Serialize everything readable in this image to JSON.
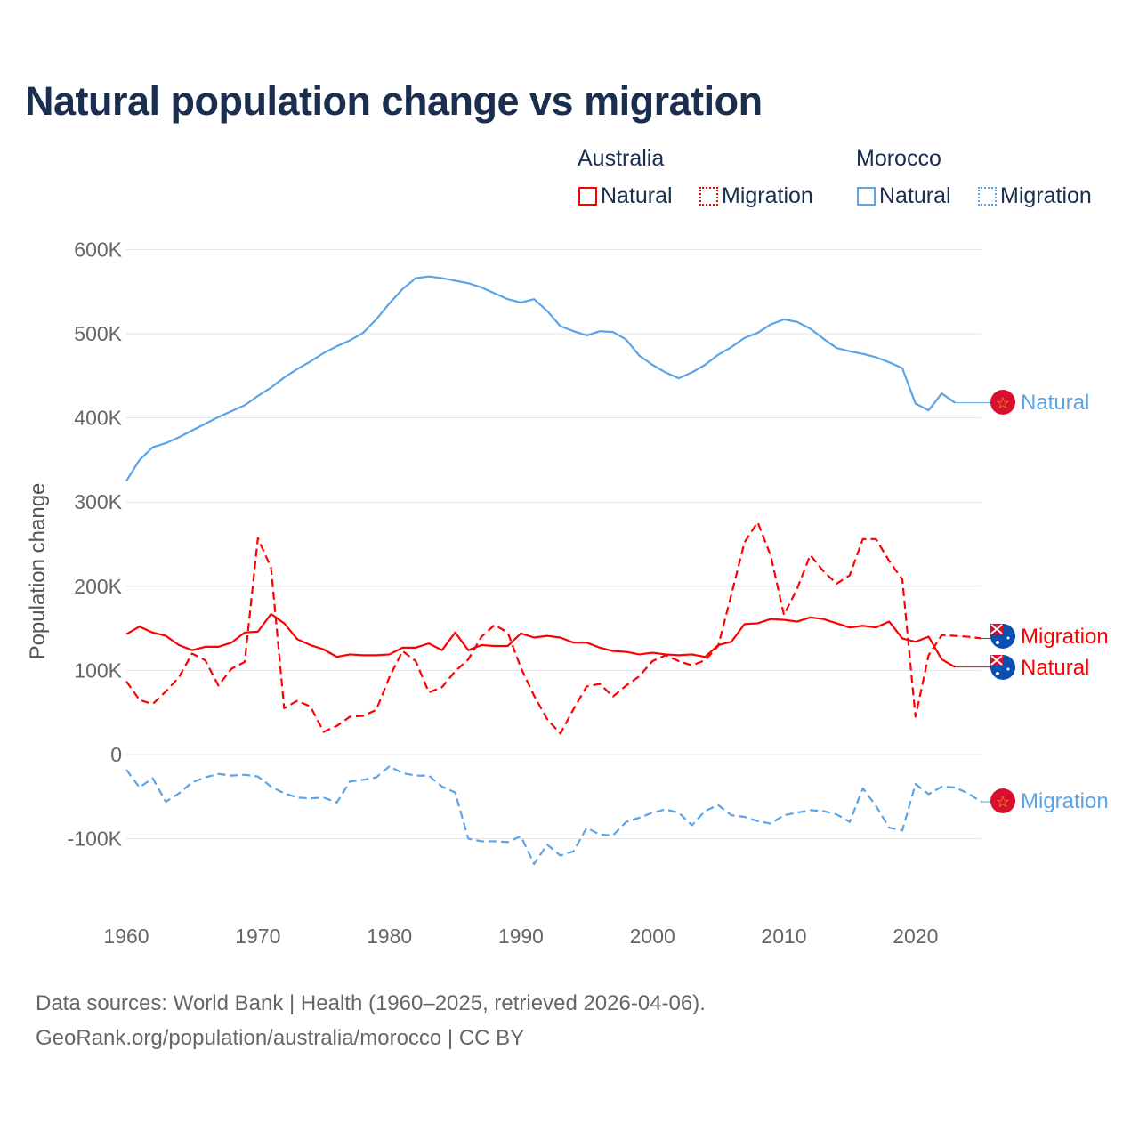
{
  "title": "Natural population change vs migration",
  "legend": {
    "groups": [
      {
        "name": "Australia",
        "color": "#ff0000",
        "items": [
          "Natural",
          "Migration"
        ]
      },
      {
        "name": "Morocco",
        "color": "#5aa4e8",
        "items": [
          "Natural",
          "Migration"
        ]
      }
    ]
  },
  "footer": {
    "line1": "Data sources: World Bank | Health (1960–2025, retrieved 2026-04-06).",
    "line2": "GeoRank.org/population/australia/morocco | CC BY"
  },
  "chart_data": {
    "type": "line",
    "title": "Natural population change vs migration",
    "xlabel": "",
    "ylabel": "Population change",
    "xlim": [
      1960,
      2025
    ],
    "ylim": [
      -150000,
      620000
    ],
    "x_ticks": [
      1960,
      1970,
      1980,
      1990,
      2000,
      2010,
      2020
    ],
    "x_tick_labels": [
      "1960",
      "1970",
      "1980",
      "1990",
      "2000",
      "2010",
      "2020"
    ],
    "y_ticks": [
      -100000,
      0,
      100000,
      200000,
      300000,
      400000,
      500000,
      600000
    ],
    "y_tick_labels": [
      "-100K",
      "0",
      "100K",
      "200K",
      "300K",
      "400K",
      "500K",
      "600K"
    ],
    "grid": true,
    "series": [
      {
        "name": "Australia Natural",
        "label": "Natural",
        "country": "Australia",
        "color": "#ff0000",
        "dash": false,
        "start": 1960,
        "unit": "K",
        "values": [
          143,
          152,
          145,
          141,
          130,
          124,
          128,
          128,
          133,
          145,
          146,
          167,
          156,
          137,
          130,
          125,
          116,
          119,
          118,
          118,
          119,
          127,
          127,
          132,
          124,
          145,
          124,
          130,
          129,
          129,
          144,
          139,
          141,
          139,
          133,
          133,
          127,
          123,
          122,
          119,
          121,
          119,
          118,
          119,
          116,
          130,
          134,
          155,
          156,
          161,
          160,
          158,
          163,
          161,
          156,
          151,
          153,
          151,
          158,
          138,
          134,
          140,
          113,
          104
        ]
      },
      {
        "name": "Australia Migration",
        "label": "Migration",
        "country": "Australia",
        "color": "#ff0000",
        "dash": true,
        "start": 1960,
        "unit": "K",
        "values": [
          87,
          65,
          60,
          75,
          92,
          120,
          112,
          82,
          102,
          110,
          257,
          222,
          55,
          64,
          57,
          27,
          34,
          45,
          46,
          53,
          92,
          123,
          111,
          74,
          80,
          99,
          113,
          140,
          154,
          145,
          103,
          70,
          42,
          25,
          54,
          81,
          84,
          69,
          82,
          93,
          111,
          118,
          111,
          106,
          112,
          129,
          190,
          252,
          276,
          236,
          166,
          197,
          237,
          218,
          203,
          213,
          256,
          256,
          230,
          208,
          45,
          118,
          142,
          141,
          140,
          138
        ]
      },
      {
        "name": "Morocco Natural",
        "label": "Natural",
        "country": "Morocco",
        "color": "#5aa4e8",
        "dash": false,
        "start": 1960,
        "unit": "K",
        "values": [
          325,
          350,
          365,
          370,
          377,
          385,
          393,
          401,
          408,
          415,
          426,
          436,
          448,
          458,
          467,
          477,
          485,
          492,
          501,
          517,
          536,
          553,
          566,
          568,
          566,
          563,
          560,
          555,
          548,
          541,
          537,
          541,
          527,
          509,
          503,
          498,
          503,
          502,
          493,
          474,
          463,
          454,
          447,
          454,
          463,
          475,
          484,
          495,
          501,
          511,
          517,
          514,
          506,
          494,
          483,
          479,
          476,
          472,
          466,
          459,
          417,
          409,
          429,
          418
        ]
      },
      {
        "name": "Morocco Migration",
        "label": "Migration",
        "country": "Morocco",
        "color": "#5aa4e8",
        "dash": true,
        "start": 1960,
        "unit": "K",
        "values": [
          -18,
          -39,
          -28,
          -56,
          -46,
          -33,
          -27,
          -23,
          -25,
          -24,
          -26,
          -38,
          -46,
          -51,
          -52,
          -51,
          -57,
          -32,
          -30,
          -27,
          -14,
          -22,
          -25,
          -25,
          -38,
          -45,
          -100,
          -103,
          -103,
          -104,
          -97,
          -130,
          -107,
          -120,
          -115,
          -87,
          -95,
          -96,
          -80,
          -75,
          -69,
          -65,
          -69,
          -84,
          -67,
          -60,
          -72,
          -74,
          -79,
          -82,
          -72,
          -69,
          -66,
          -67,
          -71,
          -80,
          -40,
          -61,
          -87,
          -90,
          -35,
          -47,
          -38,
          -39,
          -46,
          -56
        ]
      }
    ]
  }
}
